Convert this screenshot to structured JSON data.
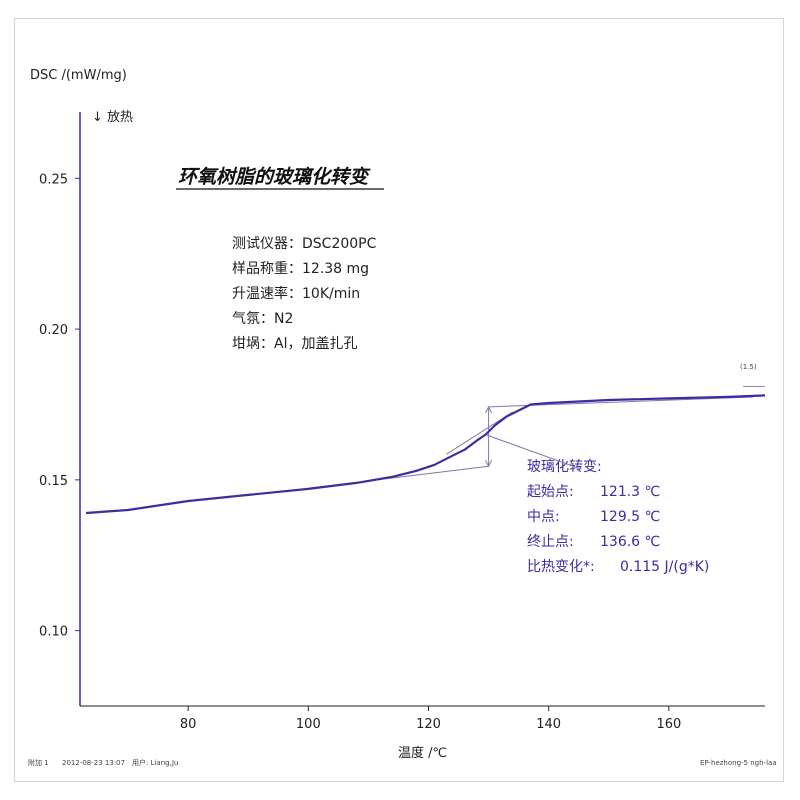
{
  "chart_data": {
    "type": "line",
    "ylabel": "DSC /(mW/mg)",
    "exo_label": "↓ 放热",
    "xlabel": "温度 /℃",
    "title": "环氧树脂的玻璃化转变",
    "xlim": [
      62,
      176
    ],
    "ylim": [
      0.075,
      0.272
    ],
    "xticks": [
      80,
      100,
      120,
      140,
      160
    ],
    "yticks": [
      0.1,
      0.15,
      0.2,
      0.25
    ],
    "ytick_labels": [
      "0.10",
      "0.15",
      "0.20",
      "0.25"
    ],
    "series": [
      {
        "color": "#3a2ea0",
        "x": [
          63,
          70,
          80,
          90,
          100,
          108,
          114,
          118,
          121,
          124,
          126,
          128,
          129.5,
          131,
          133,
          135,
          137,
          140,
          145,
          150,
          160,
          170,
          176
        ],
        "y": [
          0.139,
          0.14,
          0.143,
          0.145,
          0.147,
          0.149,
          0.151,
          0.153,
          0.155,
          0.158,
          0.16,
          0.163,
          0.165,
          0.168,
          0.171,
          0.173,
          0.175,
          0.1755,
          0.176,
          0.1765,
          0.177,
          0.1775,
          0.178
        ]
      }
    ],
    "curve_marker": "(1.5)",
    "annotation": {
      "title": "玻璃化转变:",
      "onset_label": "起始点:",
      "onset_value": "121.3 ℃",
      "mid_label": "中点:",
      "mid_value": "129.5 ℃",
      "end_label": "终止点:",
      "end_value": "136.6 ℃",
      "cp_label": "比热变化*:",
      "cp_value": "0.115 J/(g*K)",
      "onset": 121.3,
      "midpoint": 129.5,
      "end": 136.6
    },
    "info": [
      "测试仪器：DSC200PC",
      "样品称重：12.38 mg",
      "升温速率：10K/min",
      "气氛：N2",
      "坩埚：Al，加盖扎孔"
    ]
  },
  "footer": {
    "left": "附加 1",
    "date": "2012-08-23 13:07",
    "user": "用户: Liang,Ju",
    "right": "EP-hezhong-5 ngh-laa"
  },
  "colors": {
    "axis": "#3a2ea0",
    "curve": "#3a2ea0"
  }
}
